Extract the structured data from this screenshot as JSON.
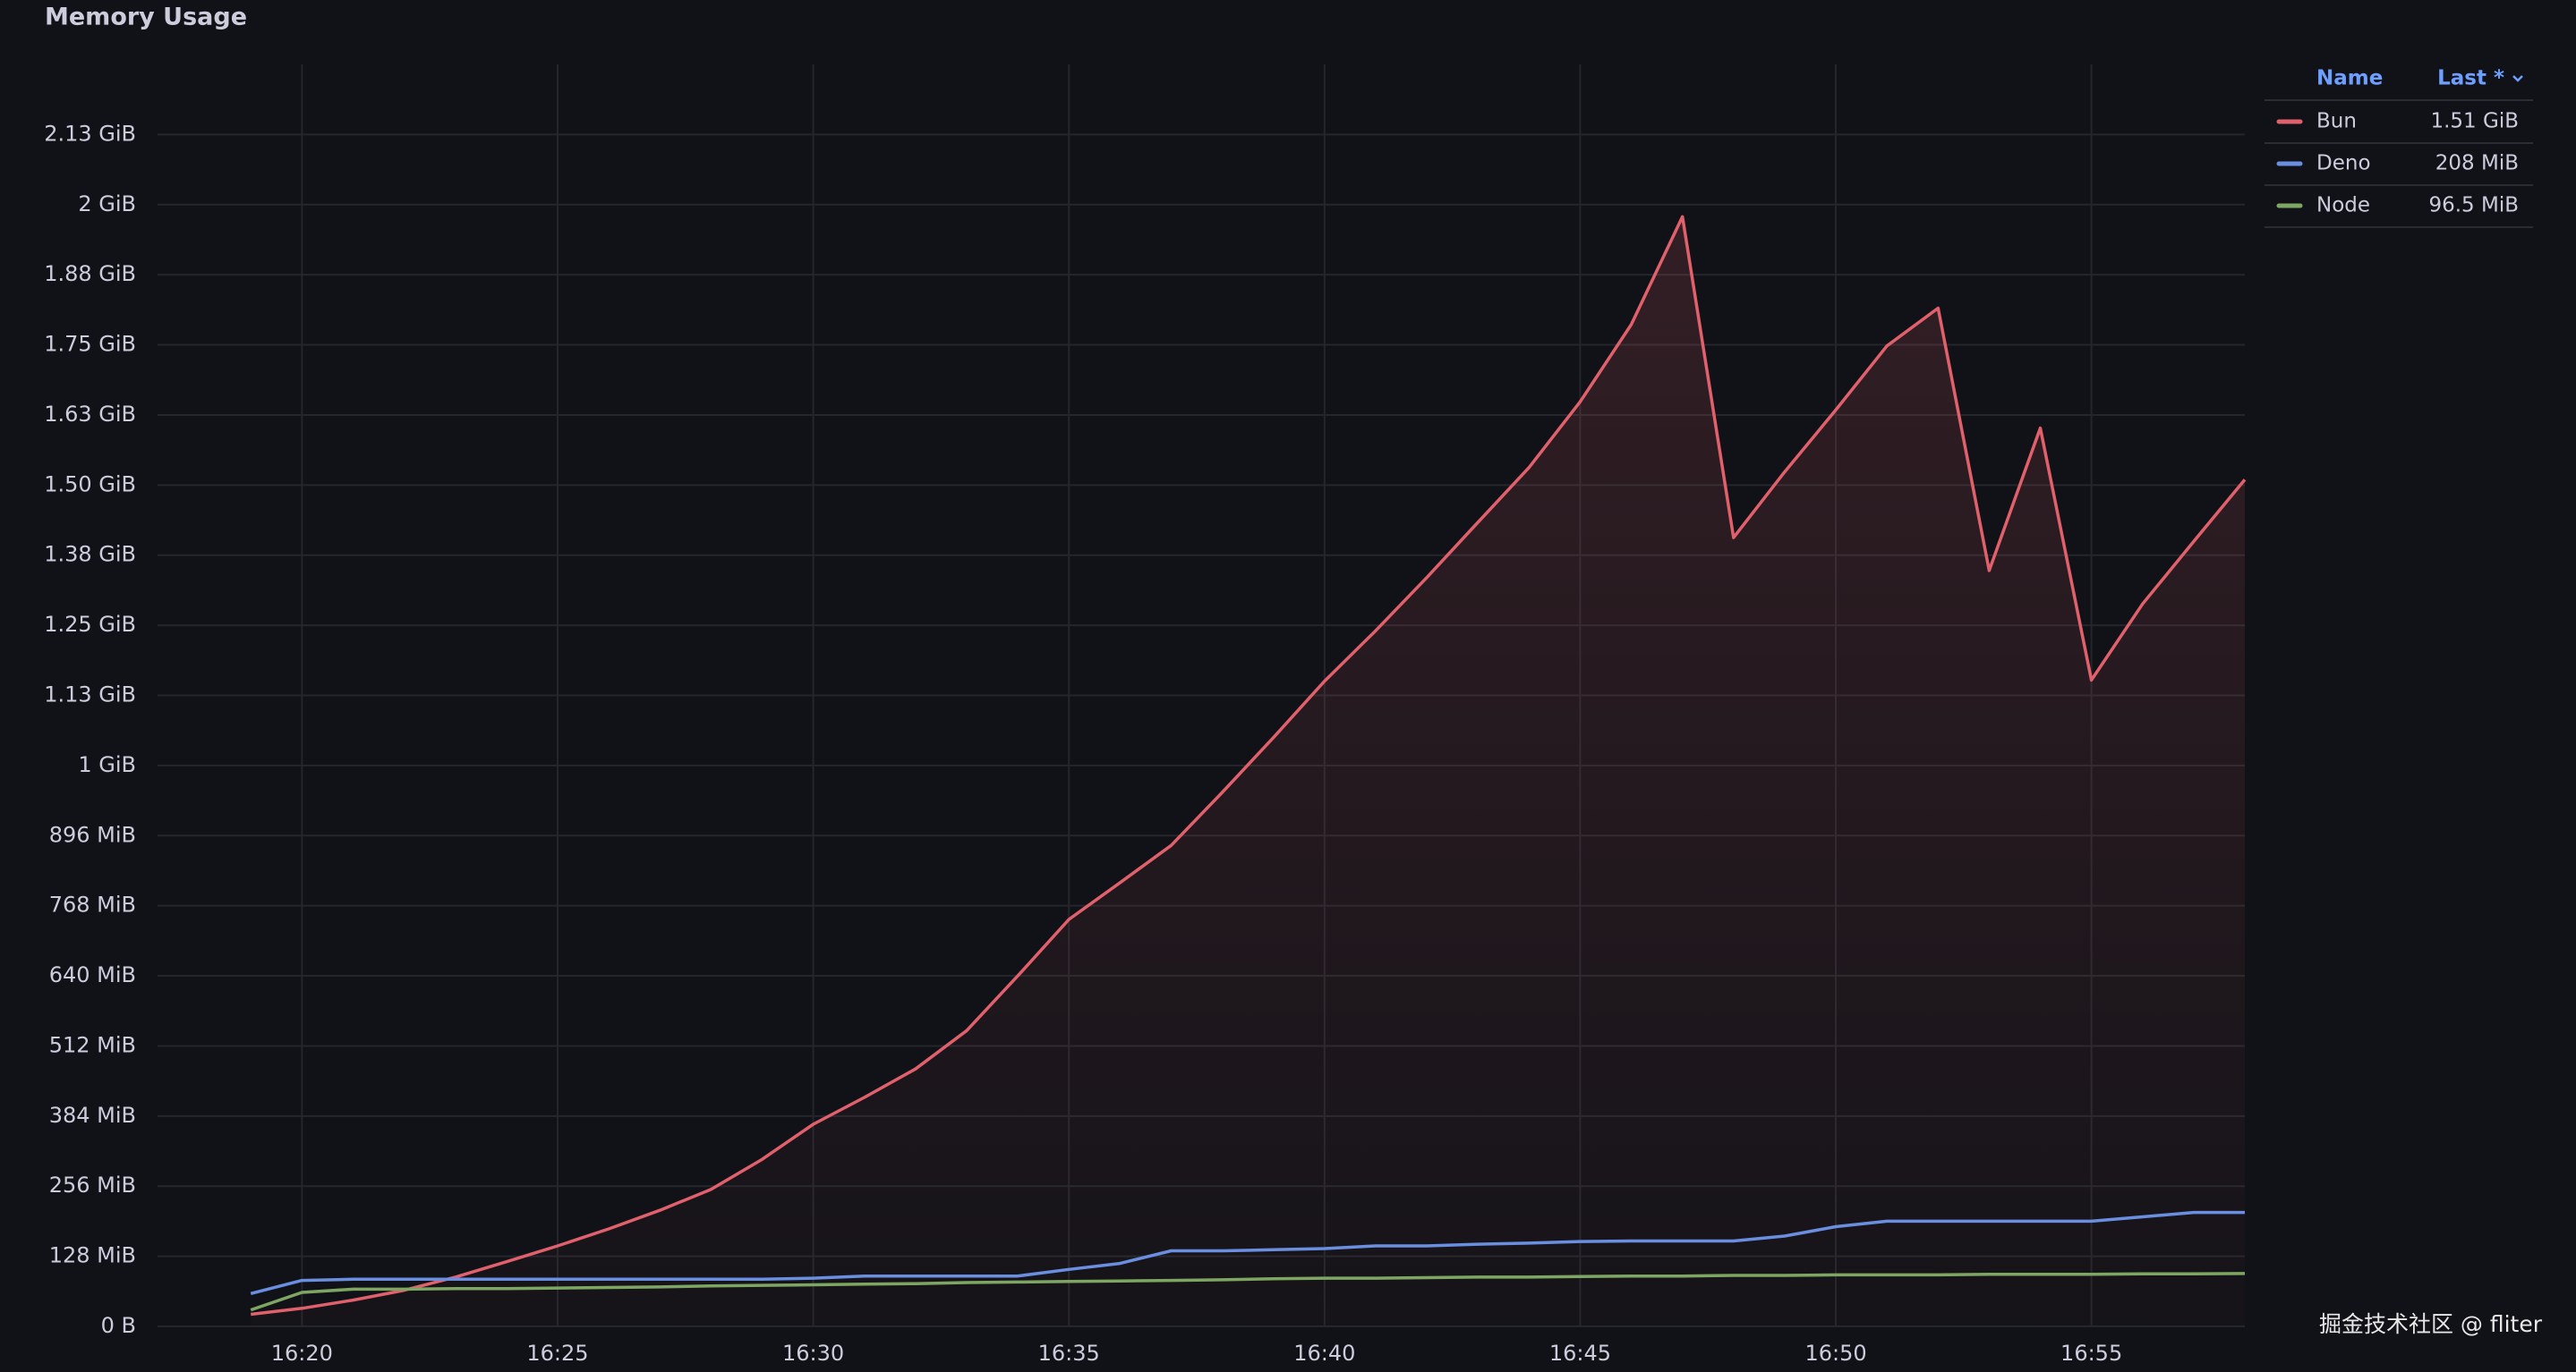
{
  "chart_data": {
    "type": "line",
    "title": "Memory Usage",
    "x": [
      "16:19",
      "16:20",
      "16:21",
      "16:22",
      "16:23",
      "16:24",
      "16:25",
      "16:26",
      "16:27",
      "16:28",
      "16:29",
      "16:30",
      "16:31",
      "16:32",
      "16:33",
      "16:34",
      "16:35",
      "16:36",
      "16:37",
      "16:38",
      "16:39",
      "16:40",
      "16:41",
      "16:42",
      "16:43",
      "16:44",
      "16:45",
      "16:46",
      "16:47",
      "16:48",
      "16:49",
      "16:50",
      "16:51",
      "16:52",
      "16:53",
      "16:54",
      "16:55",
      "16:56",
      "16:57",
      "16:58"
    ],
    "series": [
      {
        "name": "Bun",
        "color": "#e0606c",
        "fill": true,
        "values": [
          22,
          33,
          48,
          66,
          90,
          118,
          147,
          178,
          212,
          250,
          305,
          369,
          418,
          470,
          540,
          640,
          743,
          810,
          878,
          975,
          1075,
          1178,
          1270,
          1367,
          1468,
          1568,
          1688,
          1829,
          2026,
          1440,
          1560,
          1673,
          1790,
          1859,
          1380,
          1640,
          1180,
          1319,
          1433,
          1546
        ]
      },
      {
        "name": "Deno",
        "color": "#6a8ee0",
        "fill": false,
        "values": [
          60,
          84,
          86,
          86,
          86,
          86,
          86,
          86,
          86,
          86,
          86,
          88,
          92,
          92,
          92,
          92,
          104,
          115,
          138,
          138,
          140,
          142,
          147,
          147,
          150,
          152,
          155,
          156,
          156,
          156,
          165,
          182,
          192,
          192,
          192,
          192,
          192,
          200,
          208,
          208
        ]
      },
      {
        "name": "Node",
        "color": "#7ea663",
        "fill": false,
        "values": [
          30,
          62,
          68,
          68,
          69,
          69,
          70,
          71,
          72,
          74,
          75,
          76,
          77,
          78,
          80,
          81,
          82,
          83,
          84,
          85,
          87,
          88,
          88,
          89,
          90,
          90,
          91,
          92,
          92,
          93,
          93,
          94,
          94,
          94,
          95,
          95,
          95,
          96,
          96,
          96.5
        ]
      }
    ],
    "xlim": [
      "16:17",
      "16:58"
    ],
    "xticks": [
      "16:20",
      "16:25",
      "16:30",
      "16:35",
      "16:40",
      "16:45",
      "16:50",
      "16:55"
    ],
    "ylim": [
      0,
      2304
    ],
    "yticks": [
      {
        "value": 0,
        "label": "0 B"
      },
      {
        "value": 128,
        "label": "128 MiB"
      },
      {
        "value": 256,
        "label": "256 MiB"
      },
      {
        "value": 384,
        "label": "384 MiB"
      },
      {
        "value": 512,
        "label": "512 MiB"
      },
      {
        "value": 640,
        "label": "640 MiB"
      },
      {
        "value": 768,
        "label": "768 MiB"
      },
      {
        "value": 896,
        "label": "896 MiB"
      },
      {
        "value": 1024,
        "label": "1 GiB"
      },
      {
        "value": 1152,
        "label": "1.13 GiB"
      },
      {
        "value": 1280,
        "label": "1.25 GiB"
      },
      {
        "value": 1408,
        "label": "1.38 GiB"
      },
      {
        "value": 1536,
        "label": "1.50 GiB"
      },
      {
        "value": 1664,
        "label": "1.63 GiB"
      },
      {
        "value": 1792,
        "label": "1.75 GiB"
      },
      {
        "value": 1920,
        "label": "1.88 GiB"
      },
      {
        "value": 2048,
        "label": "2 GiB"
      },
      {
        "value": 2176,
        "label": "2.13 GiB"
      }
    ],
    "grid": true,
    "legend": {
      "position": "right",
      "name_header": "Name",
      "last_header": "Last *",
      "last_values": [
        "1.51 GiB",
        "208 MiB",
        "96.5 MiB"
      ]
    },
    "watermark": "掘金技术社区 @ fliter"
  }
}
